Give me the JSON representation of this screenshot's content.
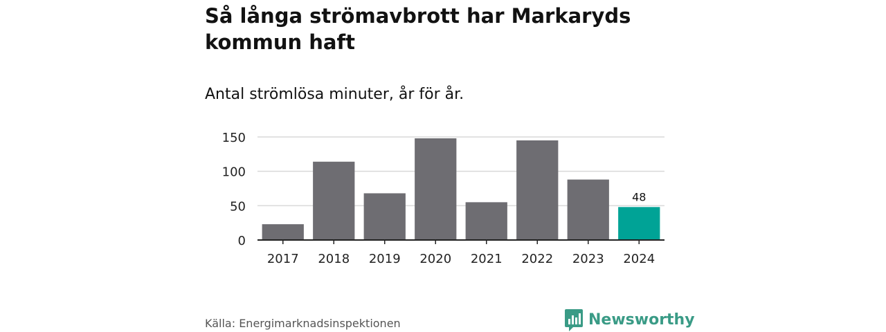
{
  "title": "Så långa strömavbrott har Markaryds kommun haft",
  "subtitle": "Antal strömlösa minuter, år för år.",
  "source": "Källa: Energimarknadsinspektionen",
  "brand": {
    "name": "Newsworthy",
    "icon": "bar-chart-speech-bubble-logo",
    "color": "#3a9b86"
  },
  "chart_data": {
    "type": "bar",
    "categories": [
      "2017",
      "2018",
      "2019",
      "2020",
      "2021",
      "2022",
      "2023",
      "2024"
    ],
    "values": [
      23,
      114,
      68,
      148,
      55,
      145,
      88,
      48
    ],
    "yticks": [
      0,
      50,
      100,
      150
    ],
    "ylim": [
      0,
      150
    ],
    "grid": true,
    "bar_color": "#6e6d72",
    "highlight_color": "#00a396",
    "highlight_index": 7,
    "data_labels": [
      {
        "index": 7,
        "text": "48"
      }
    ]
  }
}
